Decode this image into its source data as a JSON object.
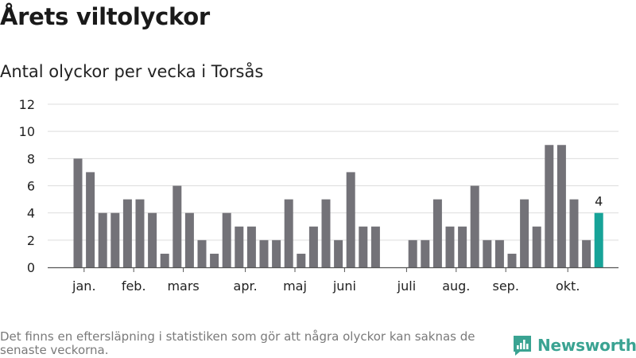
{
  "header": {
    "title": "Årets viltolyckor",
    "subtitle": "Antal olyckor per vecka i Torsås"
  },
  "footer": {
    "note": "Det finns en eftersläpning i statistiken som gör att några olyckor kan saknas de senaste veckorna.",
    "brand": "Newsworthy"
  },
  "colors": {
    "bar": "#737278",
    "highlight": "#17a398",
    "grid": "#dddddd",
    "axis": "#555555",
    "brand": "#3aa392"
  },
  "chart_data": {
    "type": "bar",
    "title": "Antal olyckor per vecka i Torsås",
    "xlabel": "",
    "ylabel": "",
    "ylim": [
      0,
      12
    ],
    "yticks": [
      0,
      2,
      4,
      6,
      8,
      10,
      12
    ],
    "grid": true,
    "weeks": [
      1,
      2,
      3,
      4,
      5,
      6,
      7,
      8,
      9,
      10,
      11,
      12,
      13,
      14,
      15,
      16,
      17,
      18,
      19,
      20,
      21,
      22,
      23,
      24,
      25,
      26,
      27,
      28,
      29,
      30,
      31,
      32,
      33,
      34,
      35,
      36,
      37,
      38,
      39,
      40,
      41,
      42,
      43
    ],
    "values": [
      8,
      7,
      4,
      4,
      5,
      5,
      4,
      1,
      6,
      4,
      2,
      1,
      4,
      3,
      3,
      2,
      2,
      5,
      1,
      3,
      5,
      2,
      7,
      3,
      3,
      0,
      0,
      2,
      2,
      5,
      3,
      3,
      6,
      2,
      2,
      1,
      5,
      3,
      9,
      9,
      5,
      2,
      4
    ],
    "highlight_index": 42,
    "highlight_label": "4",
    "month_labels": [
      {
        "label": "jan.",
        "week": 1.5
      },
      {
        "label": "feb.",
        "week": 5.5
      },
      {
        "label": "mars",
        "week": 9.5
      },
      {
        "label": "apr.",
        "week": 14.5
      },
      {
        "label": "maj",
        "week": 18.5
      },
      {
        "label": "juni",
        "week": 22.5
      },
      {
        "label": "juli",
        "week": 27.5
      },
      {
        "label": "aug.",
        "week": 31.5
      },
      {
        "label": "sep.",
        "week": 35.5
      },
      {
        "label": "okt.",
        "week": 40.5
      }
    ]
  }
}
